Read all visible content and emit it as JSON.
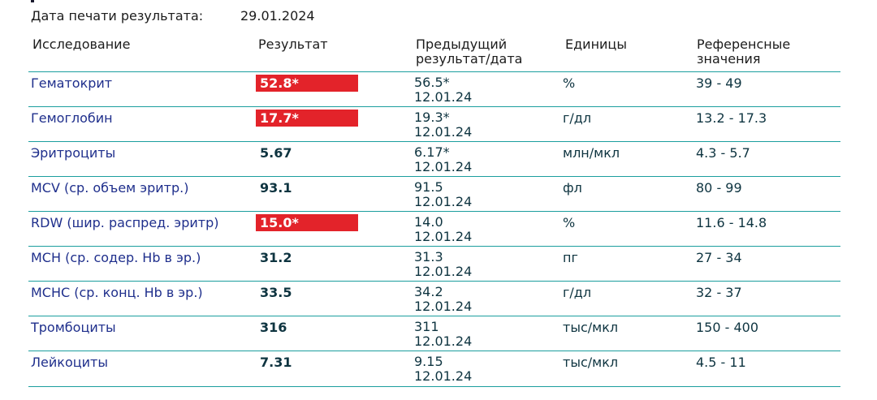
{
  "print_date": {
    "label": "Дата печати результата:",
    "value": "29.01.2024"
  },
  "headers": {
    "name": "Исследование",
    "result": "Результат",
    "prev_line1": "Предыдущий",
    "prev_line2": "результат/дата",
    "unit": "Единицы",
    "ref_line1": "Референсные",
    "ref_line2": "значения"
  },
  "colors": {
    "flag_bg": "#e3232a",
    "row_border": "#1b9e9e",
    "name_text": "#1f2f8c"
  },
  "rows": [
    {
      "name": "Гематокрит",
      "result": "52.8*",
      "flagged": true,
      "prev_value": "56.5*",
      "prev_date": "12.01.24",
      "unit": "%",
      "ref": "39 - 49"
    },
    {
      "name": "Гемоглобин",
      "result": "17.7*",
      "flagged": true,
      "prev_value": "19.3*",
      "prev_date": "12.01.24",
      "unit": "г/дл",
      "ref": "13.2 - 17.3"
    },
    {
      "name": "Эритроциты",
      "result": "5.67",
      "flagged": false,
      "prev_value": "6.17*",
      "prev_date": "12.01.24",
      "unit": "млн/мкл",
      "ref": "4.3 - 5.7"
    },
    {
      "name": "MCV (ср. объем эритр.)",
      "result": "93.1",
      "flagged": false,
      "prev_value": "91.5",
      "prev_date": "12.01.24",
      "unit": "фл",
      "ref": "80 - 99"
    },
    {
      "name": "RDW (шир. распред. эритр)",
      "result": "15.0*",
      "flagged": true,
      "prev_value": "14.0",
      "prev_date": "12.01.24",
      "unit": "%",
      "ref": "11.6 - 14.8"
    },
    {
      "name": "MCH (ср. содер. Hb в эр.)",
      "result": "31.2",
      "flagged": false,
      "prev_value": "31.3",
      "prev_date": "12.01.24",
      "unit": "пг",
      "ref": "27 - 34"
    },
    {
      "name": "MCHC (ср. конц. Hb в эр.)",
      "result": "33.5",
      "flagged": false,
      "prev_value": "34.2",
      "prev_date": "12.01.24",
      "unit": "г/дл",
      "ref": "32 - 37"
    },
    {
      "name": "Тромбоциты",
      "result": "316",
      "flagged": false,
      "prev_value": "311",
      "prev_date": "12.01.24",
      "unit": "тыс/мкл",
      "ref": "150 - 400"
    },
    {
      "name": "Лейкоциты",
      "result": "7.31",
      "flagged": false,
      "prev_value": "9.15",
      "prev_date": "12.01.24",
      "unit": "тыс/мкл",
      "ref": "4.5 - 11"
    }
  ]
}
